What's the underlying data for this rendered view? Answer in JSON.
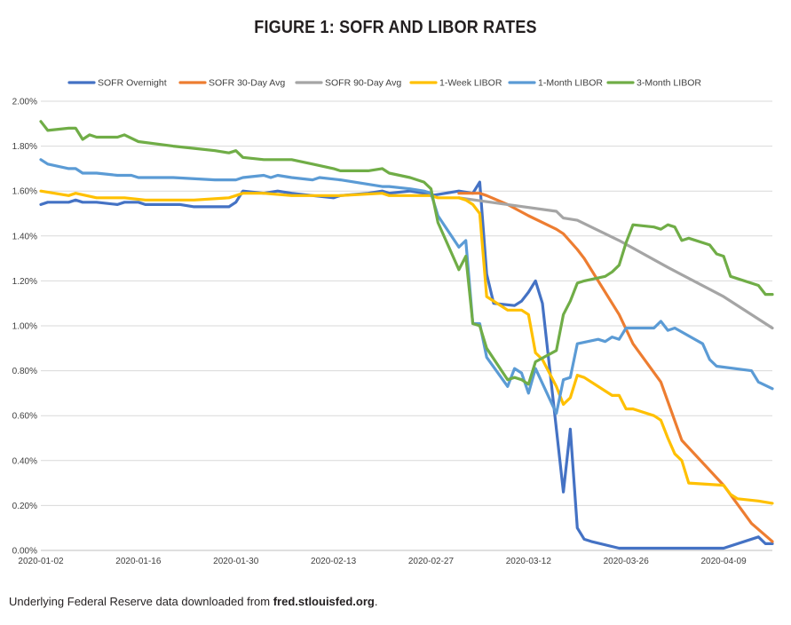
{
  "title": "FIGURE 1: SOFR AND LIBOR RATES",
  "footer": {
    "prefix": "Underlying Federal Reserve data downloaded from ",
    "link": "fred.stlouisfed.org",
    "suffix": "."
  },
  "chart_data": {
    "type": "line",
    "title": "FIGURE 1: SOFR AND LIBOR RATES",
    "xlabel": "",
    "ylabel": "",
    "legend_position": "top",
    "grid": true,
    "x_range": [
      "2020-01-02",
      "2020-04-16"
    ],
    "ylim": [
      0,
      2.0
    ],
    "y_ticks": [
      "0.00%",
      "0.20%",
      "0.40%",
      "0.60%",
      "0.80%",
      "1.00%",
      "1.20%",
      "1.40%",
      "1.60%",
      "1.80%",
      "2.00%"
    ],
    "x_ticks": [
      "2020-01-02",
      "2020-01-16",
      "2020-01-30",
      "2020-02-13",
      "2020-02-27",
      "2020-03-12",
      "2020-03-26",
      "2020-04-09"
    ],
    "series": [
      {
        "name": "SOFR Overnight",
        "color": "#4472c4",
        "points": [
          [
            "2020-01-02",
            1.54
          ],
          [
            "2020-01-03",
            1.55
          ],
          [
            "2020-01-06",
            1.55
          ],
          [
            "2020-01-07",
            1.56
          ],
          [
            "2020-01-08",
            1.55
          ],
          [
            "2020-01-10",
            1.55
          ],
          [
            "2020-01-13",
            1.54
          ],
          [
            "2020-01-14",
            1.55
          ],
          [
            "2020-01-16",
            1.55
          ],
          [
            "2020-01-17",
            1.54
          ],
          [
            "2020-01-22",
            1.54
          ],
          [
            "2020-01-24",
            1.53
          ],
          [
            "2020-01-27",
            1.53
          ],
          [
            "2020-01-29",
            1.53
          ],
          [
            "2020-01-30",
            1.55
          ],
          [
            "2020-01-31",
            1.6
          ],
          [
            "2020-02-03",
            1.59
          ],
          [
            "2020-02-05",
            1.6
          ],
          [
            "2020-02-07",
            1.59
          ],
          [
            "2020-02-10",
            1.58
          ],
          [
            "2020-02-13",
            1.57
          ],
          [
            "2020-02-14",
            1.58
          ],
          [
            "2020-02-18",
            1.59
          ],
          [
            "2020-02-20",
            1.6
          ],
          [
            "2020-02-21",
            1.59
          ],
          [
            "2020-02-24",
            1.6
          ],
          [
            "2020-02-26",
            1.59
          ],
          [
            "2020-02-27",
            1.58
          ],
          [
            "2020-03-02",
            1.6
          ],
          [
            "2020-03-04",
            1.59
          ],
          [
            "2020-03-05",
            1.64
          ],
          [
            "2020-03-06",
            1.23
          ],
          [
            "2020-03-07",
            1.1
          ],
          [
            "2020-03-10",
            1.09
          ],
          [
            "2020-03-11",
            1.11
          ],
          [
            "2020-03-12",
            1.15
          ],
          [
            "2020-03-13",
            1.2
          ],
          [
            "2020-03-14",
            1.1
          ],
          [
            "2020-03-17",
            0.26
          ],
          [
            "2020-03-18",
            0.54
          ],
          [
            "2020-03-19",
            0.1
          ],
          [
            "2020-03-20",
            0.05
          ],
          [
            "2020-03-21",
            0.04
          ],
          [
            "2020-03-25",
            0.01
          ],
          [
            "2020-03-30",
            0.01
          ],
          [
            "2020-04-09",
            0.01
          ],
          [
            "2020-04-14",
            0.06
          ],
          [
            "2020-04-15",
            0.03
          ],
          [
            "2020-04-16",
            0.03
          ]
        ]
      },
      {
        "name": "SOFR 30-Day Avg",
        "color": "#ed7d31",
        "points": [
          [
            "2020-03-02",
            1.59
          ],
          [
            "2020-03-05",
            1.59
          ],
          [
            "2020-03-06",
            1.58
          ],
          [
            "2020-03-09",
            1.54
          ],
          [
            "2020-03-12",
            1.49
          ],
          [
            "2020-03-16",
            1.43
          ],
          [
            "2020-03-17",
            1.41
          ],
          [
            "2020-03-19",
            1.34
          ],
          [
            "2020-03-20",
            1.3
          ],
          [
            "2020-03-25",
            1.05
          ],
          [
            "2020-03-27",
            0.92
          ],
          [
            "2020-03-31",
            0.75
          ],
          [
            "2020-04-03",
            0.49
          ],
          [
            "2020-04-09",
            0.29
          ],
          [
            "2020-04-13",
            0.12
          ],
          [
            "2020-04-16",
            0.04
          ]
        ]
      },
      {
        "name": "SOFR 90-Day Avg",
        "color": "#a5a5a5",
        "points": [
          [
            "2020-03-02",
            1.57
          ],
          [
            "2020-03-09",
            1.54
          ],
          [
            "2020-03-16",
            1.51
          ],
          [
            "2020-03-17",
            1.48
          ],
          [
            "2020-03-19",
            1.47
          ],
          [
            "2020-03-25",
            1.38
          ],
          [
            "2020-04-01",
            1.26
          ],
          [
            "2020-04-09",
            1.13
          ],
          [
            "2020-04-16",
            0.99
          ]
        ]
      },
      {
        "name": "1-Week LIBOR",
        "color": "#ffc000",
        "points": [
          [
            "2020-01-02",
            1.6
          ],
          [
            "2020-01-06",
            1.58
          ],
          [
            "2020-01-07",
            1.59
          ],
          [
            "2020-01-10",
            1.57
          ],
          [
            "2020-01-14",
            1.57
          ],
          [
            "2020-01-17",
            1.56
          ],
          [
            "2020-01-20",
            1.56
          ],
          [
            "2020-01-24",
            1.56
          ],
          [
            "2020-01-29",
            1.57
          ],
          [
            "2020-01-30",
            1.58
          ],
          [
            "2020-01-31",
            1.59
          ],
          [
            "2020-02-03",
            1.59
          ],
          [
            "2020-02-07",
            1.58
          ],
          [
            "2020-02-14",
            1.58
          ],
          [
            "2020-02-20",
            1.59
          ],
          [
            "2020-02-21",
            1.58
          ],
          [
            "2020-02-27",
            1.58
          ],
          [
            "2020-02-28",
            1.57
          ],
          [
            "2020-03-02",
            1.57
          ],
          [
            "2020-03-03",
            1.56
          ],
          [
            "2020-03-04",
            1.54
          ],
          [
            "2020-03-05",
            1.5
          ],
          [
            "2020-03-06",
            1.13
          ],
          [
            "2020-03-09",
            1.07
          ],
          [
            "2020-03-11",
            1.07
          ],
          [
            "2020-03-12",
            1.05
          ],
          [
            "2020-03-13",
            0.88
          ],
          [
            "2020-03-14",
            0.85
          ],
          [
            "2020-03-16",
            0.73
          ],
          [
            "2020-03-17",
            0.65
          ],
          [
            "2020-03-18",
            0.68
          ],
          [
            "2020-03-19",
            0.78
          ],
          [
            "2020-03-20",
            0.77
          ],
          [
            "2020-03-23",
            0.71
          ],
          [
            "2020-03-24",
            0.69
          ],
          [
            "2020-03-25",
            0.69
          ],
          [
            "2020-03-26",
            0.63
          ],
          [
            "2020-03-27",
            0.63
          ],
          [
            "2020-03-30",
            0.6
          ],
          [
            "2020-03-31",
            0.58
          ],
          [
            "2020-04-01",
            0.5
          ],
          [
            "2020-04-02",
            0.43
          ],
          [
            "2020-04-03",
            0.4
          ],
          [
            "2020-04-04",
            0.3
          ],
          [
            "2020-04-09",
            0.29
          ],
          [
            "2020-04-10",
            0.25
          ],
          [
            "2020-04-11",
            0.23
          ],
          [
            "2020-04-14",
            0.22
          ],
          [
            "2020-04-16",
            0.21
          ]
        ]
      },
      {
        "name": "1-Month LIBOR",
        "color": "#5b9bd5",
        "points": [
          [
            "2020-01-02",
            1.74
          ],
          [
            "2020-01-03",
            1.72
          ],
          [
            "2020-01-06",
            1.7
          ],
          [
            "2020-01-07",
            1.7
          ],
          [
            "2020-01-08",
            1.68
          ],
          [
            "2020-01-10",
            1.68
          ],
          [
            "2020-01-13",
            1.67
          ],
          [
            "2020-01-15",
            1.67
          ],
          [
            "2020-01-16",
            1.66
          ],
          [
            "2020-01-21",
            1.66
          ],
          [
            "2020-01-27",
            1.65
          ],
          [
            "2020-01-29",
            1.65
          ],
          [
            "2020-01-30",
            1.65
          ],
          [
            "2020-01-31",
            1.66
          ],
          [
            "2020-02-03",
            1.67
          ],
          [
            "2020-02-04",
            1.66
          ],
          [
            "2020-02-05",
            1.67
          ],
          [
            "2020-02-07",
            1.66
          ],
          [
            "2020-02-10",
            1.65
          ],
          [
            "2020-02-11",
            1.66
          ],
          [
            "2020-02-14",
            1.65
          ],
          [
            "2020-02-18",
            1.63
          ],
          [
            "2020-02-20",
            1.62
          ],
          [
            "2020-02-21",
            1.62
          ],
          [
            "2020-02-24",
            1.61
          ],
          [
            "2020-02-26",
            1.6
          ],
          [
            "2020-02-27",
            1.59
          ],
          [
            "2020-02-28",
            1.49
          ],
          [
            "2020-03-02",
            1.35
          ],
          [
            "2020-03-03",
            1.38
          ],
          [
            "2020-03-04",
            1.01
          ],
          [
            "2020-03-05",
            1.01
          ],
          [
            "2020-03-06",
            0.86
          ],
          [
            "2020-03-09",
            0.73
          ],
          [
            "2020-03-10",
            0.81
          ],
          [
            "2020-03-11",
            0.79
          ],
          [
            "2020-03-12",
            0.7
          ],
          [
            "2020-03-13",
            0.81
          ],
          [
            "2020-03-16",
            0.61
          ],
          [
            "2020-03-17",
            0.76
          ],
          [
            "2020-03-18",
            0.77
          ],
          [
            "2020-03-19",
            0.92
          ],
          [
            "2020-03-22",
            0.94
          ],
          [
            "2020-03-23",
            0.93
          ],
          [
            "2020-03-24",
            0.95
          ],
          [
            "2020-03-25",
            0.94
          ],
          [
            "2020-03-26",
            0.99
          ],
          [
            "2020-03-30",
            0.99
          ],
          [
            "2020-03-31",
            1.02
          ],
          [
            "2020-04-01",
            0.98
          ],
          [
            "2020-04-02",
            0.99
          ],
          [
            "2020-04-06",
            0.92
          ],
          [
            "2020-04-07",
            0.85
          ],
          [
            "2020-04-08",
            0.82
          ],
          [
            "2020-04-13",
            0.8
          ],
          [
            "2020-04-14",
            0.75
          ],
          [
            "2020-04-16",
            0.72
          ]
        ]
      },
      {
        "name": "3-Month LIBOR",
        "color": "#70ad47",
        "points": [
          [
            "2020-01-02",
            1.91
          ],
          [
            "2020-01-03",
            1.87
          ],
          [
            "2020-01-06",
            1.88
          ],
          [
            "2020-01-07",
            1.88
          ],
          [
            "2020-01-08",
            1.83
          ],
          [
            "2020-01-09",
            1.85
          ],
          [
            "2020-01-10",
            1.84
          ],
          [
            "2020-01-13",
            1.84
          ],
          [
            "2020-01-14",
            1.85
          ],
          [
            "2020-01-16",
            1.82
          ],
          [
            "2020-01-21",
            1.8
          ],
          [
            "2020-01-24",
            1.79
          ],
          [
            "2020-01-27",
            1.78
          ],
          [
            "2020-01-29",
            1.77
          ],
          [
            "2020-01-30",
            1.78
          ],
          [
            "2020-01-31",
            1.75
          ],
          [
            "2020-02-03",
            1.74
          ],
          [
            "2020-02-07",
            1.74
          ],
          [
            "2020-02-10",
            1.72
          ],
          [
            "2020-02-13",
            1.7
          ],
          [
            "2020-02-14",
            1.69
          ],
          [
            "2020-02-18",
            1.69
          ],
          [
            "2020-02-20",
            1.7
          ],
          [
            "2020-02-21",
            1.68
          ],
          [
            "2020-02-24",
            1.66
          ],
          [
            "2020-02-26",
            1.64
          ],
          [
            "2020-02-27",
            1.61
          ],
          [
            "2020-02-28",
            1.46
          ],
          [
            "2020-03-02",
            1.25
          ],
          [
            "2020-03-03",
            1.31
          ],
          [
            "2020-03-04",
            1.01
          ],
          [
            "2020-03-05",
            1.0
          ],
          [
            "2020-03-06",
            0.9
          ],
          [
            "2020-03-09",
            0.76
          ],
          [
            "2020-03-10",
            0.77
          ],
          [
            "2020-03-11",
            0.76
          ],
          [
            "2020-03-12",
            0.74
          ],
          [
            "2020-03-13",
            0.84
          ],
          [
            "2020-03-16",
            0.89
          ],
          [
            "2020-03-17",
            1.05
          ],
          [
            "2020-03-18",
            1.11
          ],
          [
            "2020-03-19",
            1.19
          ],
          [
            "2020-03-20",
            1.2
          ],
          [
            "2020-03-23",
            1.22
          ],
          [
            "2020-03-24",
            1.24
          ],
          [
            "2020-03-25",
            1.27
          ],
          [
            "2020-03-26",
            1.37
          ],
          [
            "2020-03-27",
            1.45
          ],
          [
            "2020-03-30",
            1.44
          ],
          [
            "2020-03-31",
            1.43
          ],
          [
            "2020-04-01",
            1.45
          ],
          [
            "2020-04-02",
            1.44
          ],
          [
            "2020-04-03",
            1.38
          ],
          [
            "2020-04-04",
            1.39
          ],
          [
            "2020-04-07",
            1.36
          ],
          [
            "2020-04-08",
            1.32
          ],
          [
            "2020-04-09",
            1.31
          ],
          [
            "2020-04-10",
            1.22
          ],
          [
            "2020-04-14",
            1.18
          ],
          [
            "2020-04-15",
            1.14
          ],
          [
            "2020-04-16",
            1.14
          ]
        ]
      }
    ]
  }
}
